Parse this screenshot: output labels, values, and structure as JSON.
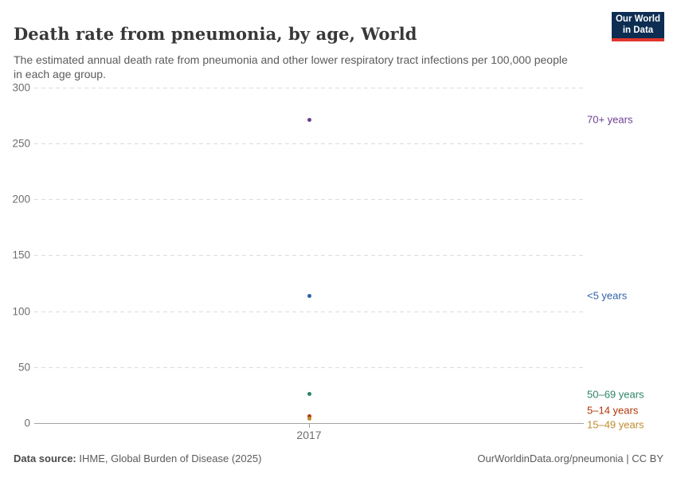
{
  "header": {
    "title": "Death rate from pneumonia, by age, World",
    "subtitle": "The estimated annual death rate from pneumonia and other lower respiratory tract infections per 100,000 people in each age group.",
    "logo": {
      "line1": "Our World",
      "line2": "in Data",
      "bg_color": "#0d2d52",
      "accent_color": "#e0362c"
    }
  },
  "chart_data": {
    "type": "scatter",
    "title": "Death rate from pneumonia, by age, World",
    "xlabel": "",
    "ylabel": "",
    "x": [
      2017
    ],
    "xticks": [
      "2017"
    ],
    "yticks": [
      0,
      50,
      100,
      150,
      200,
      250,
      300
    ],
    "ylim": [
      0,
      300
    ],
    "grid": "dashed-horizontal",
    "legend_position": "right-entity-labels",
    "series": [
      {
        "name": "70+ years",
        "color": "#6D3E91",
        "values": [
          271
        ]
      },
      {
        "name": "<5 years",
        "color": "#3360A9",
        "values": [
          114
        ]
      },
      {
        "name": "50–69 years",
        "color": "#2C8465",
        "values": [
          26
        ]
      },
      {
        "name": "5–14 years",
        "color": "#B13507",
        "values": [
          6
        ]
      },
      {
        "name": "15–49 years",
        "color": "#BF8B2E",
        "values": [
          4
        ]
      }
    ]
  },
  "footer": {
    "source_label": "Data source:",
    "source_text": " IHME, Global Burden of Disease (2025)",
    "link_text": "OurWorldinData.org/pneumonia | CC BY"
  }
}
